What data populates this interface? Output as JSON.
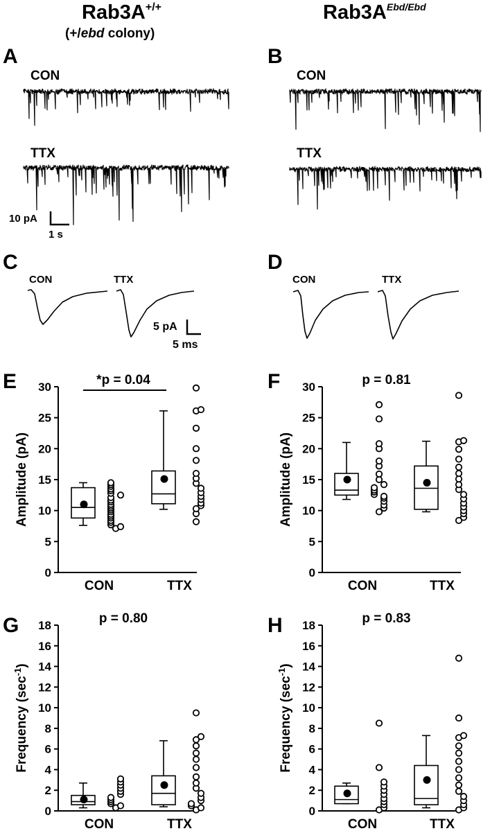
{
  "headers": {
    "left_title": "Rab3A",
    "left_sup": "+/+",
    "left_sub": "(+/",
    "left_sub_italic": "ebd",
    "left_sub_end": " colony)",
    "right_title": "Rab3A",
    "right_sup": "Ebd/Ebd"
  },
  "traces": {
    "A": {
      "label": "A",
      "con": "CON",
      "ttx": "TTX"
    },
    "B": {
      "label": "B",
      "con": "CON",
      "ttx": "TTX"
    },
    "scale_ab": {
      "y": "10 pA",
      "x": "1 s"
    }
  },
  "averages": {
    "C": {
      "label": "C",
      "con": "CON",
      "ttx": "TTX"
    },
    "D": {
      "label": "D",
      "con": "CON",
      "ttx": "TTX"
    },
    "scale_cd": {
      "y": "5 pA",
      "x": "5 ms"
    }
  },
  "colors": {
    "ink": "#000000",
    "background": "#ffffff"
  },
  "chart_data": [
    {
      "panel": "E",
      "type": "box+scatter",
      "ylabel": "Amplitude (pA)",
      "ylim": [
        0,
        30
      ],
      "yticks": [
        0,
        5,
        10,
        15,
        20,
        25,
        30
      ],
      "categories": [
        "CON",
        "TTX"
      ],
      "annotation": "*p = 0.04",
      "significance_bar": true,
      "groups": [
        {
          "name": "CON",
          "box": {
            "whisker_low": 7.6,
            "q1": 8.8,
            "median": 10.5,
            "q3": 13.7,
            "whisker_high": 14.5
          },
          "mean": 11.0,
          "points": [
            7.1,
            7.4,
            7.7,
            8.1,
            8.4,
            8.8,
            9.1,
            9.4,
            9.8,
            10.1,
            10.4,
            10.7,
            11.0,
            11.4,
            11.7,
            12.1,
            12.5,
            12.8,
            13.2,
            13.5,
            13.9,
            14.2,
            14.5
          ]
        },
        {
          "name": "TTX",
          "box": {
            "whisker_low": 10.2,
            "q1": 11.1,
            "median": 12.7,
            "q3": 16.4,
            "whisker_high": 26.1
          },
          "mean": 15.1,
          "points": [
            8.2,
            9.5,
            10.3,
            10.8,
            11.2,
            11.8,
            12.3,
            12.9,
            13.6,
            14.4,
            15.2,
            16.0,
            18.1,
            20.0,
            23.3,
            26.1,
            26.3,
            29.8
          ]
        }
      ]
    },
    {
      "panel": "F",
      "type": "box+scatter",
      "ylabel": "Amplitude (pA)",
      "ylim": [
        0,
        30
      ],
      "yticks": [
        0,
        5,
        10,
        15,
        20,
        25,
        30
      ],
      "categories": [
        "CON",
        "TTX"
      ],
      "annotation": "p = 0.81",
      "significance_bar": false,
      "groups": [
        {
          "name": "CON",
          "box": {
            "whisker_low": 11.8,
            "q1": 12.5,
            "median": 13.3,
            "q3": 16.0,
            "whisker_high": 21.0
          },
          "mean": 15.0,
          "points": [
            9.8,
            10.4,
            10.9,
            11.5,
            12.0,
            12.3,
            12.6,
            13.0,
            13.3,
            13.7,
            14.2,
            15.0,
            15.9,
            17.2,
            18.0,
            20.0,
            20.8,
            24.8,
            27.1
          ]
        },
        {
          "name": "TTX",
          "box": {
            "whisker_low": 9.8,
            "q1": 10.2,
            "median": 13.6,
            "q3": 17.2,
            "whisker_high": 21.2
          },
          "mean": 14.5,
          "points": [
            8.4,
            8.9,
            9.5,
            10.0,
            10.6,
            11.2,
            11.9,
            12.6,
            13.4,
            14.2,
            15.1,
            16.0,
            17.0,
            18.3,
            19.9,
            21.1,
            21.3,
            28.6
          ]
        }
      ]
    },
    {
      "panel": "G",
      "type": "box+scatter",
      "ylabel": "Frequency (sec⁻¹)",
      "ylim": [
        0,
        18
      ],
      "yticks": [
        0,
        2,
        4,
        6,
        8,
        10,
        12,
        14,
        16,
        18
      ],
      "categories": [
        "CON",
        "TTX"
      ],
      "annotation": "p = 0.80",
      "significance_bar": false,
      "groups": [
        {
          "name": "CON",
          "box": {
            "whisker_low": 0.3,
            "q1": 0.6,
            "median": 0.9,
            "q3": 1.5,
            "whisker_high": 2.7
          },
          "mean": 1.1,
          "points": [
            0.3,
            0.5,
            0.7,
            0.9,
            1.1,
            1.3,
            1.6,
            1.9,
            2.2,
            2.5,
            2.8,
            3.1
          ]
        },
        {
          "name": "TTX",
          "box": {
            "whisker_low": 0.4,
            "q1": 0.6,
            "median": 1.7,
            "q3": 3.4,
            "whisker_high": 6.8
          },
          "mean": 2.5,
          "points": [
            0.1,
            0.3,
            0.5,
            0.7,
            1.0,
            1.3,
            1.7,
            2.2,
            2.7,
            3.3,
            4.2,
            5.0,
            5.6,
            6.3,
            6.9,
            7.2,
            9.5
          ]
        }
      ]
    },
    {
      "panel": "H",
      "type": "box+scatter",
      "ylabel": "Frequency (sec⁻¹)",
      "ylim": [
        0,
        18
      ],
      "yticks": [
        0,
        2,
        4,
        6,
        8,
        10,
        12,
        14,
        16,
        18
      ],
      "categories": [
        "CON",
        "TTX"
      ],
      "annotation": "p = 0.83",
      "significance_bar": false,
      "groups": [
        {
          "name": "CON",
          "box": {
            "whisker_low": 0.7,
            "q1": 0.7,
            "median": 1.1,
            "q3": 2.4,
            "whisker_high": 2.7
          },
          "mean": 1.7,
          "points": [
            0.1,
            0.3,
            0.6,
            0.9,
            1.2,
            1.6,
            2.0,
            2.4,
            2.8,
            4.2,
            8.5
          ]
        },
        {
          "name": "TTX",
          "box": {
            "whisker_low": 0.3,
            "q1": 0.6,
            "median": 1.2,
            "q3": 4.4,
            "whisker_high": 7.3
          },
          "mean": 3.0,
          "points": [
            0.1,
            0.3,
            0.6,
            1.0,
            1.4,
            1.9,
            2.5,
            3.2,
            4.0,
            4.8,
            5.6,
            6.3,
            7.1,
            7.3,
            9.0,
            14.8
          ]
        }
      ]
    }
  ]
}
